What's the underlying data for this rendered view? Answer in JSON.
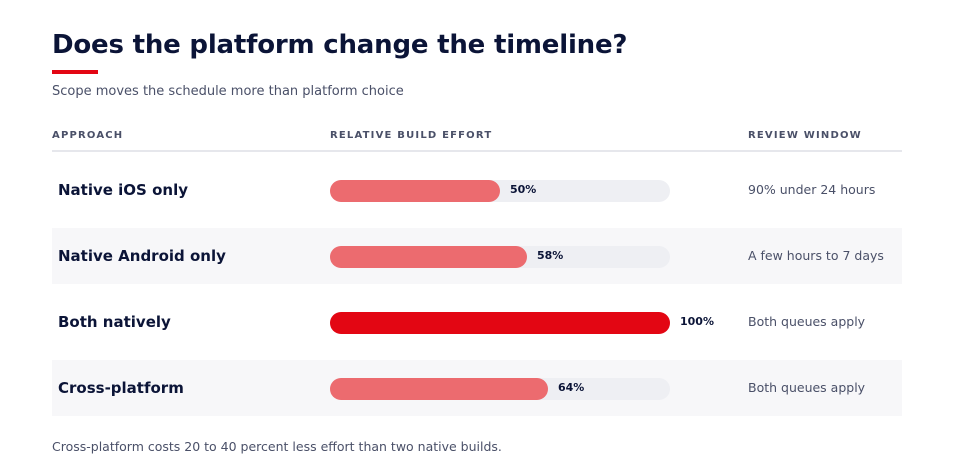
{
  "title": "Does the platform change the timeline?",
  "subtitle": "Scope moves the schedule more than platform choice",
  "columns": {
    "approach": "APPROACH",
    "effort": "RELATIVE BUILD EFFORT",
    "review": "REVIEW WINDOW"
  },
  "colors": {
    "bar": "#ec6b6f",
    "bar_highlight": "#e30613",
    "track": "#eeeff3",
    "accent": "#e30613"
  },
  "chart_data": {
    "type": "bar",
    "orientation": "horizontal",
    "categories": [
      "Native iOS only",
      "Native Android only",
      "Both natively",
      "Cross-platform"
    ],
    "values": [
      50,
      58,
      100,
      64
    ],
    "value_labels": [
      "50%",
      "58%",
      "100%",
      "64%"
    ],
    "highlight_index": 2,
    "xlim": [
      0,
      100
    ],
    "review_window": [
      "90% under 24 hours",
      "A few hours to 7 days",
      "Both queues apply",
      "Both queues apply"
    ]
  },
  "footnote": "Cross-platform costs 20 to 40 percent less effort than two native builds."
}
